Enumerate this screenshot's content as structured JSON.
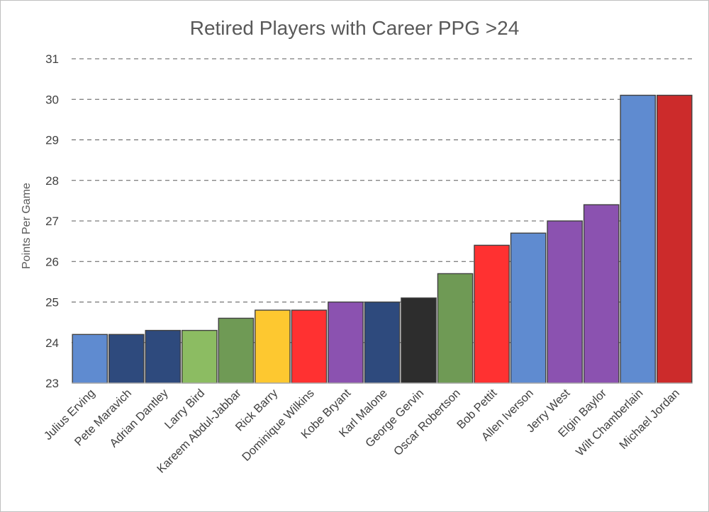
{
  "chart_data": {
    "type": "bar",
    "title": "Retired Players with Career PPG >24",
    "xlabel": "",
    "ylabel": "Points Per Game",
    "ylim": [
      23,
      31
    ],
    "yticks": [
      23,
      24,
      25,
      26,
      27,
      28,
      29,
      30,
      31
    ],
    "grid": "horizontal dashed",
    "legend": "none",
    "categories": [
      "Julius Erving",
      "Pete Maravich",
      "Adrian Dantley",
      "Larry Bird",
      "Kareem Abdul-Jabbar",
      "Rick Barry",
      "Dominique Wilkins",
      "Kobe Bryant",
      "Karl Malone",
      "George Gervin",
      "Oscar Robertson",
      "Bob Pettit",
      "Allen Iverson",
      "Jerry West",
      "Elgin Baylor",
      "Wilt Chamberlain",
      "Michael Jordan"
    ],
    "values": [
      24.2,
      24.2,
      24.3,
      24.3,
      24.6,
      24.8,
      24.8,
      25.0,
      25.0,
      25.1,
      25.7,
      26.4,
      26.7,
      27.0,
      27.4,
      30.1,
      30.1
    ],
    "colors": [
      "#5f8bd0",
      "#2e4a7d",
      "#2e4a7d",
      "#8cbc62",
      "#6f9a55",
      "#fdc830",
      "#ff3131",
      "#8b52b0",
      "#2e4a7d",
      "#2d2d2d",
      "#6f9a55",
      "#ff3131",
      "#5f8bd0",
      "#8b52b0",
      "#8b52b0",
      "#5f8bd0",
      "#cc2b2b"
    ]
  }
}
